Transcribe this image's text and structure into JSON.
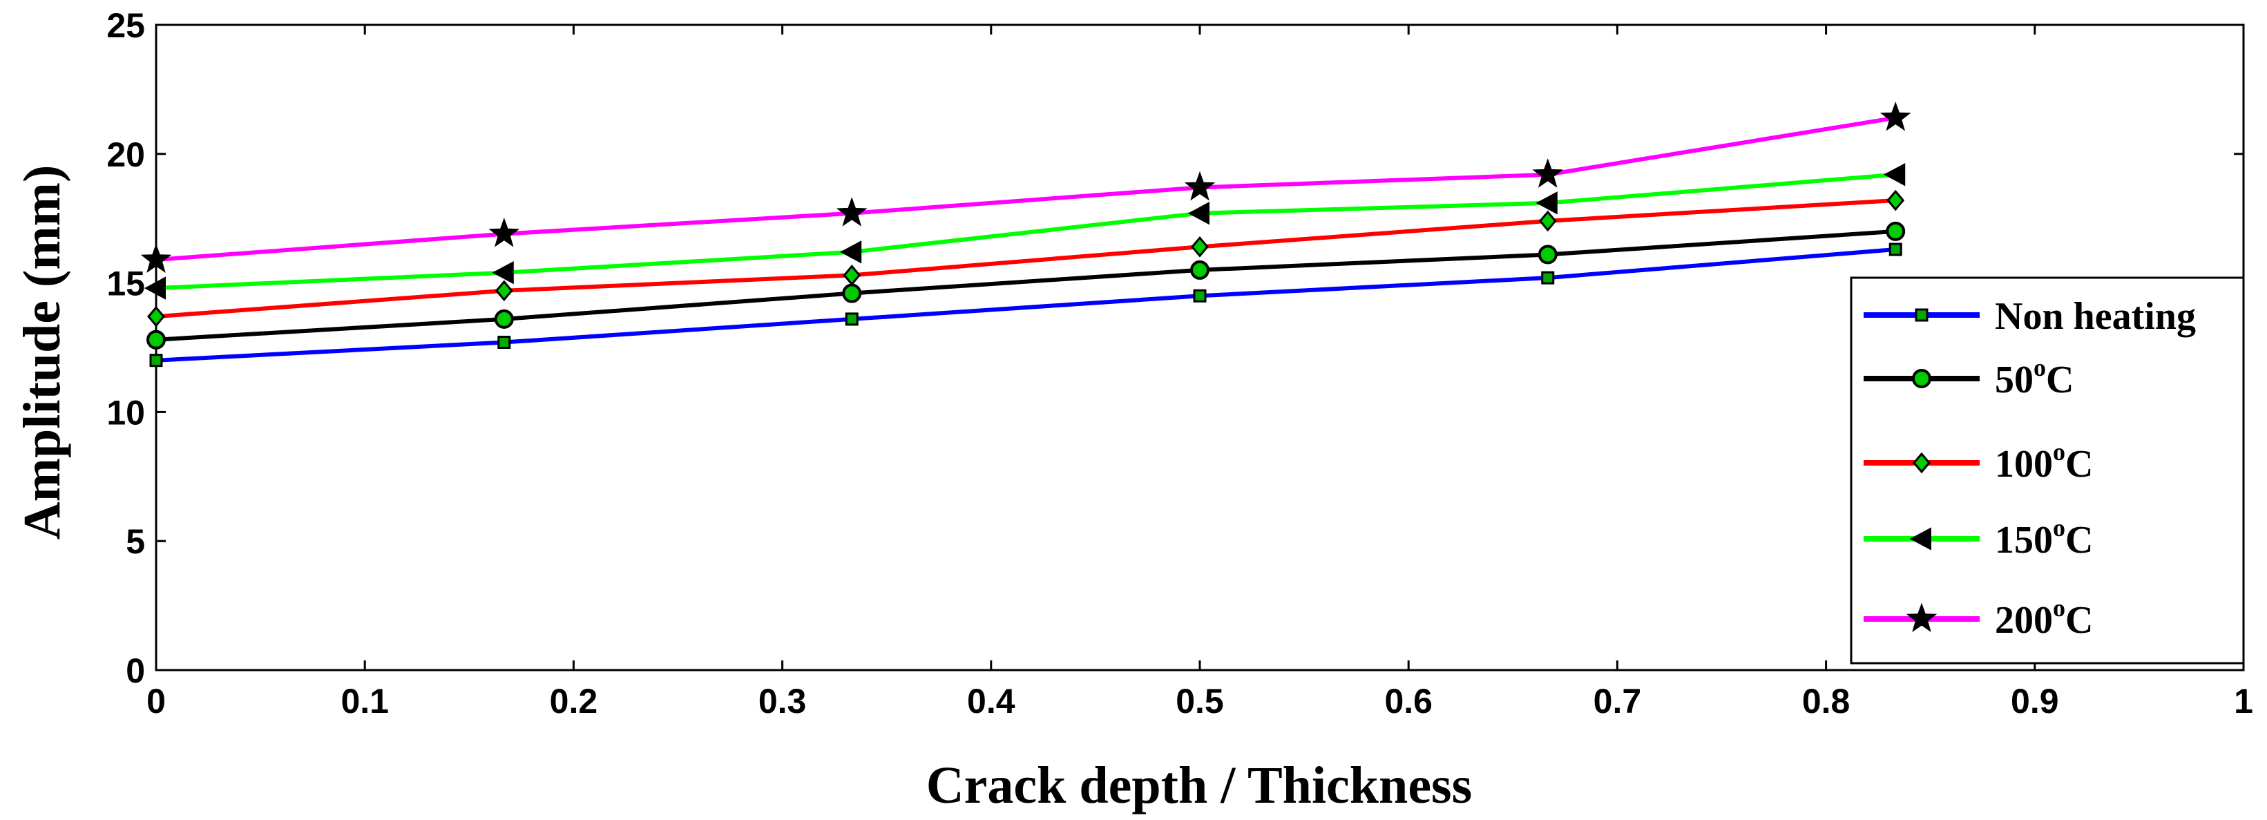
{
  "chart_data": {
    "type": "line",
    "title": "",
    "xlabel": "Crack depth / Thickness",
    "ylabel": "Amplitude (mm)",
    "xlim": [
      0,
      1
    ],
    "ylim": [
      0,
      25
    ],
    "xticks": [
      0,
      0.1,
      0.2,
      0.3,
      0.4,
      0.5,
      0.6,
      0.7,
      0.8,
      0.9,
      1
    ],
    "xtick_labels": [
      "0",
      "0.1",
      "0.2",
      "0.3",
      "0.4",
      "0.5",
      "0.6",
      "0.7",
      "0.8",
      "0.9",
      "1"
    ],
    "yticks": [
      0,
      5,
      10,
      15,
      20,
      25
    ],
    "ytick_labels": [
      "0",
      "5",
      "10",
      "15",
      "20",
      "25"
    ],
    "grid": false,
    "legend_position": "right",
    "x": [
      0,
      0.1667,
      0.3333,
      0.5,
      0.6667,
      0.8333
    ],
    "series": [
      {
        "name": "Non heating",
        "unit": "",
        "color": "#0000ff",
        "marker": "square",
        "values": [
          12.0,
          12.7,
          13.6,
          14.5,
          15.2,
          16.3
        ]
      },
      {
        "name": "50",
        "unit": "C",
        "color": "#000000",
        "marker": "circle",
        "values": [
          12.8,
          13.6,
          14.6,
          15.5,
          16.1,
          17.0
        ]
      },
      {
        "name": "100",
        "unit": "C",
        "color": "#ff0000",
        "marker": "diamond",
        "values": [
          13.7,
          14.7,
          15.3,
          16.4,
          17.4,
          18.2
        ]
      },
      {
        "name": "150",
        "unit": "C",
        "color": "#00ff00",
        "marker": "triangle",
        "values": [
          14.8,
          15.4,
          16.2,
          17.7,
          18.1,
          19.2
        ]
      },
      {
        "name": "200",
        "unit": "C",
        "color": "#ff00ff",
        "marker": "star",
        "values": [
          15.9,
          16.9,
          17.7,
          18.7,
          19.2,
          21.4
        ]
      }
    ],
    "degree_symbol": "o"
  }
}
